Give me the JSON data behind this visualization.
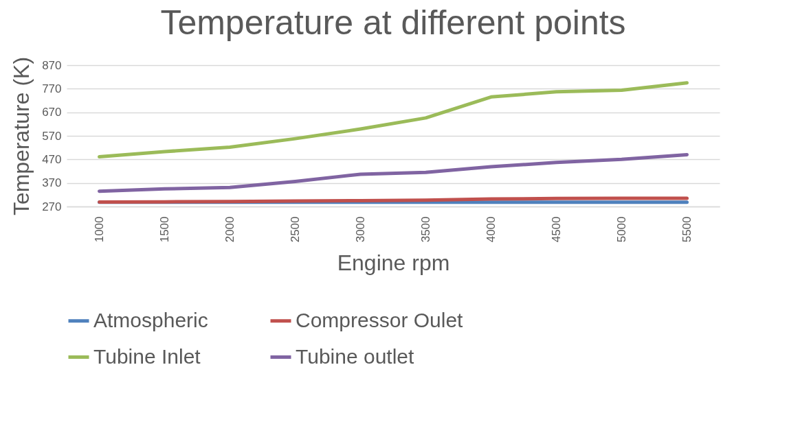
{
  "chart_data": {
    "type": "line",
    "title": "Temperature at different points",
    "xlabel": "Engine rpm",
    "ylabel": "Temperature (K)",
    "categories": [
      "1000",
      "1500",
      "2000",
      "2500",
      "3000",
      "3500",
      "4000",
      "4500",
      "5000",
      "5500"
    ],
    "series": [
      {
        "name": "Atmospheric",
        "color": "#4f81bd",
        "values": [
          288,
          288,
          288,
          288,
          288,
          288,
          288,
          288,
          288,
          288
        ]
      },
      {
        "name": "Compressor Oulet",
        "color": "#c0504d",
        "values": [
          289,
          290,
          291,
          293,
          295,
          297,
          302,
          304,
          305,
          305
        ]
      },
      {
        "name": "Tubine Inlet",
        "color": "#9bbb59",
        "values": [
          481,
          503,
          522,
          558,
          599,
          646,
          735,
          757,
          764,
          795
        ]
      },
      {
        "name": "Tubine outlet",
        "color": "#8064a2",
        "values": [
          335,
          345,
          351,
          376,
          407,
          415,
          439,
          457,
          470,
          490
        ]
      }
    ],
    "ylim": [
      270,
      870
    ],
    "yticks": [
      270,
      370,
      470,
      570,
      670,
      770,
      870
    ],
    "grid": "y",
    "legend": "bottom",
    "marker": "none",
    "line_style": "solid"
  }
}
